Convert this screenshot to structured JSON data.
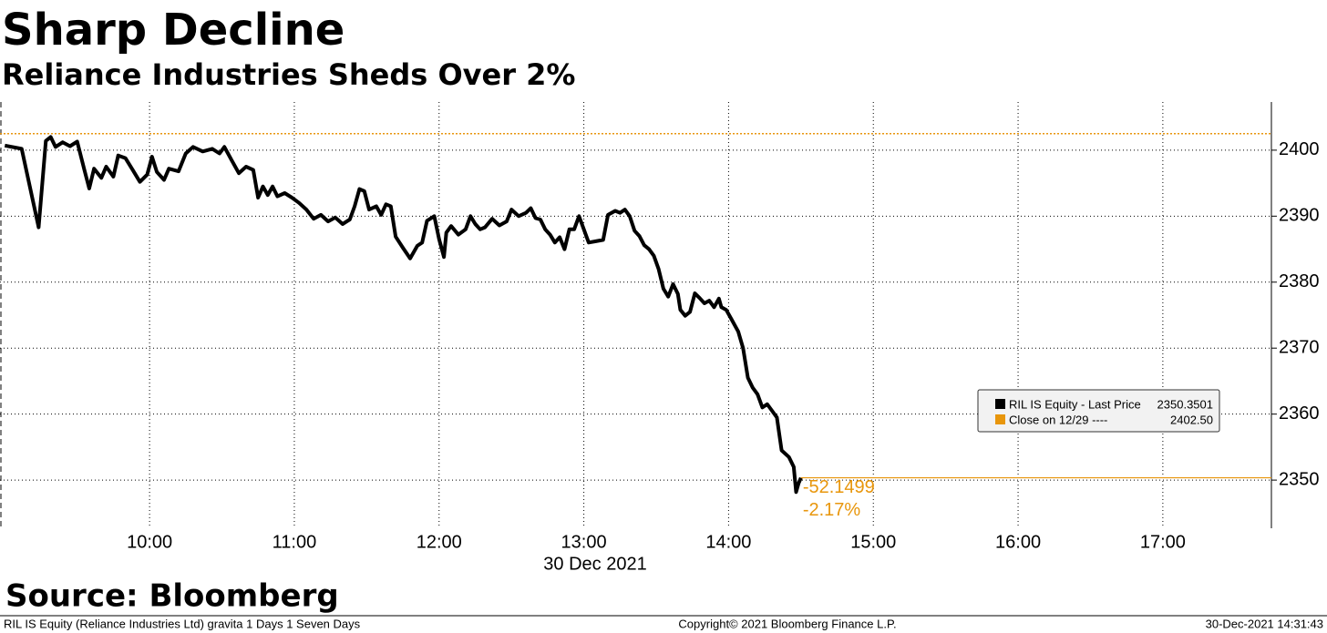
{
  "chart_data": {
    "type": "line",
    "title": "Sharp Decline",
    "subtitle": "Reliance Industries Sheds Over 2%",
    "x_label": "30 Dec 2021",
    "source": "Source: Bloomberg",
    "footer": {
      "left": "RIL IS Equity (Reliance Industries Ltd) gravita 1 Days 1 Seven Days",
      "center": "Copyright© 2021 Bloomberg Finance L.P.",
      "right": "30-Dec-2021 14:31:43"
    },
    "x": [
      "09:00",
      "09:07",
      "09:14",
      "09:17",
      "09:19",
      "09:21",
      "09:24",
      "09:27",
      "09:30",
      "09:33",
      "09:35",
      "09:37",
      "09:40",
      "09:42",
      "09:45",
      "09:47",
      "09:50",
      "09:53",
      "09:56",
      "09:59",
      "10:01",
      "10:03",
      "10:06",
      "10:08",
      "10:12",
      "10:15",
      "10:18",
      "10:22",
      "10:26",
      "10:29",
      "10:31",
      "10:34",
      "10:37",
      "10:40",
      "10:43",
      "10:45",
      "10:47",
      "10:49",
      "10:51",
      "10:53",
      "10:56",
      "10:59",
      "11:02",
      "11:05",
      "11:08",
      "11:11",
      "11:14",
      "11:17",
      "11:20",
      "11:23",
      "11:25",
      "11:27",
      "11:29",
      "11:31",
      "11:34",
      "11:36",
      "11:38",
      "11:40",
      "11:42",
      "11:45",
      "11:48",
      "11:51",
      "11:53",
      "11:55",
      "11:58",
      "12:00",
      "12:02",
      "12:03",
      "12:05",
      "12:08",
      "12:11",
      "12:13",
      "12:15",
      "12:17",
      "12:19",
      "12:22",
      "12:25",
      "12:28",
      "12:30",
      "12:33",
      "12:36",
      "12:38",
      "12:40",
      "12:42",
      "12:44",
      "12:46",
      "12:48",
      "12:50",
      "12:52",
      "12:54",
      "12:56",
      "12:58",
      "13:00",
      "13:02",
      "13:05",
      "13:08",
      "13:10",
      "13:13",
      "13:15",
      "13:17",
      "13:19",
      "13:21",
      "13:23",
      "13:25",
      "13:27",
      "13:29",
      "13:31",
      "13:33",
      "13:35",
      "13:37",
      "13:39",
      "13:40",
      "13:42",
      "13:44",
      "13:46",
      "13:48",
      "13:50",
      "13:52",
      "13:54",
      "13:56",
      "13:57",
      "13:59",
      "14:01",
      "14:04",
      "14:06",
      "14:08",
      "14:10",
      "14:12",
      "14:14",
      "14:16",
      "14:18",
      "14:20",
      "14:22",
      "14:25",
      "14:27",
      "14:28",
      "14:29",
      "14:30"
    ],
    "series": [
      {
        "name": "RIL IS Equity - Last Price",
        "color": "#000000",
        "last_value": 2350.3501,
        "values": [
          2400.7,
          2400.2,
          2388.3,
          2401.4,
          2402.0,
          2400.5,
          2401.2,
          2400.6,
          2401.3,
          2397.0,
          2394.2,
          2397.2,
          2395.8,
          2397.5,
          2396.0,
          2399.2,
          2398.8,
          2397.0,
          2395.2,
          2396.3,
          2399.0,
          2396.7,
          2395.5,
          2397.2,
          2396.8,
          2399.5,
          2400.5,
          2399.8,
          2400.2,
          2399.5,
          2400.5,
          2398.5,
          2396.5,
          2397.5,
          2397.0,
          2392.8,
          2394.5,
          2393.2,
          2394.5,
          2393.0,
          2393.5,
          2392.8,
          2392.0,
          2391.0,
          2389.6,
          2390.2,
          2389.2,
          2389.8,
          2388.8,
          2389.5,
          2391.5,
          2394.1,
          2393.8,
          2391.0,
          2391.5,
          2390.2,
          2391.8,
          2391.5,
          2386.9,
          2385.2,
          2383.6,
          2385.5,
          2386.0,
          2389.3,
          2390.0,
          2386.5,
          2383.8,
          2387.5,
          2388.5,
          2387.2,
          2388.0,
          2390.0,
          2388.8,
          2388.0,
          2388.3,
          2389.6,
          2388.6,
          2389.2,
          2391.0,
          2390.0,
          2390.5,
          2391.2,
          2389.7,
          2389.5,
          2388.0,
          2387.2,
          2386.0,
          2386.8,
          2385.0,
          2388.0,
          2388.0,
          2390.0,
          2388.0,
          2386.0,
          2386.2,
          2386.4,
          2390.2,
          2390.8,
          2390.5,
          2391.0,
          2390.0,
          2387.8,
          2387.0,
          2385.6,
          2385.0,
          2384.0,
          2382.0,
          2379.0,
          2377.8,
          2379.7,
          2378.2,
          2375.8,
          2374.9,
          2375.5,
          2378.3,
          2377.6,
          2376.8,
          2377.2,
          2376.2,
          2377.5,
          2376.2,
          2375.8,
          2374.5,
          2372.5,
          2370.0,
          2365.5,
          2364.0,
          2363.0,
          2361.0,
          2361.5,
          2360.5,
          2359.5,
          2354.5,
          2353.5,
          2352.0,
          2348.2,
          2349.5,
          2350.35
        ]
      }
    ],
    "reference_line": {
      "name": "Close on 12/29 ----",
      "value": 2402.5,
      "label": "2402.50",
      "color": "#e8960c"
    },
    "change": {
      "value": -52.1499,
      "percent": {
        "value": -2.17,
        "label": "-2.17%"
      },
      "color": "#e8960c"
    },
    "xlim": [
      "08:58",
      "17:45"
    ],
    "xticks": [
      "10:00",
      "11:00",
      "12:00",
      "13:00",
      "14:00",
      "15:00",
      "16:00",
      "17:00"
    ],
    "ylim": [
      2342.7,
      2407.3
    ],
    "yticks": [
      2350,
      2360,
      2370,
      2380,
      2390,
      2400
    ],
    "grid": true
  }
}
